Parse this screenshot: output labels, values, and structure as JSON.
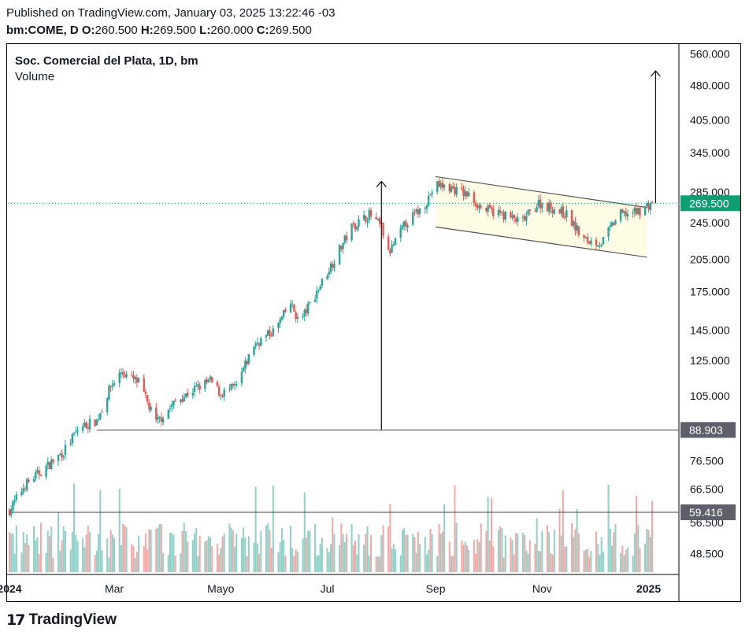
{
  "header": {
    "published": "Published on TradingView.com, January 03, 2025 13:22:46 -03",
    "symbol": "bm:COME, D",
    "o_label": "O:",
    "o_value": "260.500",
    "h_label": "H:",
    "h_value": "269.500",
    "l_label": "L:",
    "l_value": "260.000",
    "c_label": "C:",
    "c_value": "269.500"
  },
  "legend": {
    "title": "Soc. Comercial del Plata, 1D, bm",
    "volume": "Volume"
  },
  "brand": {
    "name": "TradingView"
  },
  "chart_data": {
    "type": "candlestick",
    "y_scale": "log",
    "ylim": [
      44,
      585
    ],
    "price_ticks": [
      "560.000",
      "480.000",
      "405.000",
      "345.000",
      "285.000",
      "245.000",
      "205.000",
      "175.000",
      "145.000",
      "125.000",
      "105.000",
      "88.903",
      "76.500",
      "66.500",
      "59.416",
      "56.500",
      "48.500"
    ],
    "x_ticks": [
      "2024",
      "Mar",
      "Mayo",
      "Jul",
      "Sep",
      "Nov",
      "2025"
    ],
    "colors": {
      "up": "#26a69a",
      "down": "#ef5350",
      "vol_up": "#8fd0c8",
      "vol_down": "#f4a7a4",
      "tag": "#0d9e74",
      "level_tag": "#5d606b"
    },
    "last_price": {
      "label": "269.500",
      "value": 269.5
    },
    "levels": [
      {
        "label": "88.903",
        "value": 88.903,
        "from": "2024-02-20"
      },
      {
        "label": "59.416",
        "value": 59.416,
        "from": "2024-01-01"
      }
    ],
    "channel": {
      "upper": [
        [
          "2024-09-01",
          307
        ],
        [
          "2024-12-31",
          264
        ]
      ],
      "lower": [
        [
          "2024-09-01",
          240
        ],
        [
          "2024-12-31",
          207
        ]
      ]
    },
    "measure_arrows": [
      {
        "date": "2024-08-01",
        "from": 88.903,
        "to": 300
      },
      {
        "date": "2025-01-05",
        "from": 269.5,
        "to": 515
      }
    ],
    "price_path": [
      [
        "2024-01-01",
        60
      ],
      [
        "2024-01-10",
        68
      ],
      [
        "2024-01-20",
        73
      ],
      [
        "2024-02-01",
        80
      ],
      [
        "2024-02-10",
        90
      ],
      [
        "2024-02-20",
        93
      ],
      [
        "2024-02-28",
        110
      ],
      [
        "2024-03-05",
        118
      ],
      [
        "2024-03-15",
        112
      ],
      [
        "2024-03-25",
        92
      ],
      [
        "2024-04-05",
        102
      ],
      [
        "2024-04-15",
        108
      ],
      [
        "2024-04-25",
        113
      ],
      [
        "2024-05-01",
        106
      ],
      [
        "2024-05-10",
        110
      ],
      [
        "2024-05-20",
        135
      ],
      [
        "2024-06-01",
        145
      ],
      [
        "2024-06-10",
        165
      ],
      [
        "2024-06-15",
        150
      ],
      [
        "2024-06-25",
        175
      ],
      [
        "2024-07-05",
        205
      ],
      [
        "2024-07-15",
        240
      ],
      [
        "2024-07-25",
        255
      ],
      [
        "2024-08-01",
        240
      ],
      [
        "2024-08-05",
        210
      ],
      [
        "2024-08-15",
        245
      ],
      [
        "2024-08-25",
        265
      ],
      [
        "2024-09-01",
        295
      ],
      [
        "2024-09-10",
        290
      ],
      [
        "2024-09-20",
        280
      ],
      [
        "2024-09-28",
        262
      ],
      [
        "2024-10-10",
        255
      ],
      [
        "2024-10-20",
        245
      ],
      [
        "2024-10-30",
        270
      ],
      [
        "2024-11-05",
        265
      ],
      [
        "2024-11-15",
        255
      ],
      [
        "2024-11-25",
        225
      ],
      [
        "2024-12-05",
        222
      ],
      [
        "2024-12-15",
        255
      ],
      [
        "2024-12-25",
        258
      ],
      [
        "2025-01-03",
        269.5
      ]
    ]
  }
}
